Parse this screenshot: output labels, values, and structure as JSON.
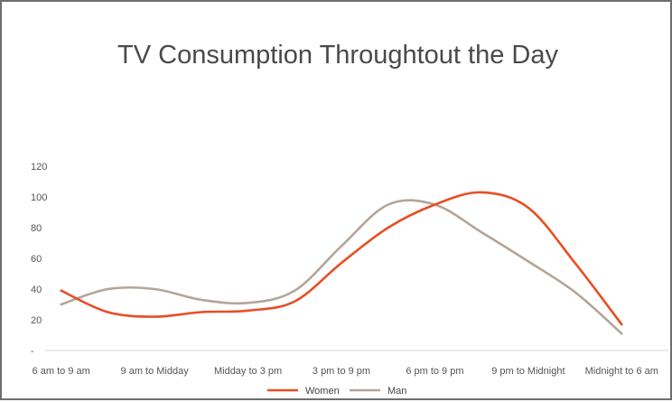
{
  "chart_data": {
    "type": "line",
    "title": "TV Consumption Throughtout the Day",
    "xlabel": "",
    "ylabel": "",
    "categories": [
      "6 am to 9 am",
      "9 am to Midday",
      "Midday to 3 pm",
      "3 pm to 9 pm",
      "6 pm to 9 pm",
      "9 pm to Midnight",
      "Midnight to 6 am"
    ],
    "x": [
      0.5,
      1.0,
      1.5,
      2.0,
      2.5,
      3.0,
      3.5,
      4.0,
      4.5,
      5.0,
      5.5,
      6.0,
      6.5
    ],
    "series": [
      {
        "name": "Women",
        "color": "#e84e24",
        "values": [
          39,
          25,
          22,
          25,
          26,
          32,
          57,
          80,
          95,
          103,
          93,
          57,
          17
        ]
      },
      {
        "name": "Man",
        "color": "#b3a597",
        "values": [
          30,
          40,
          40,
          33,
          31,
          39,
          68,
          95,
          95,
          77,
          58,
          38,
          11
        ]
      }
    ],
    "yticks": [
      0,
      20,
      40,
      60,
      80,
      100,
      120
    ],
    "ytick_labels": [
      "-",
      "20",
      "40",
      "60",
      "80",
      "100",
      "120"
    ],
    "ylim": [
      0,
      120
    ],
    "xlim": [
      0,
      7
    ],
    "grid": false,
    "legend": "bottom"
  }
}
